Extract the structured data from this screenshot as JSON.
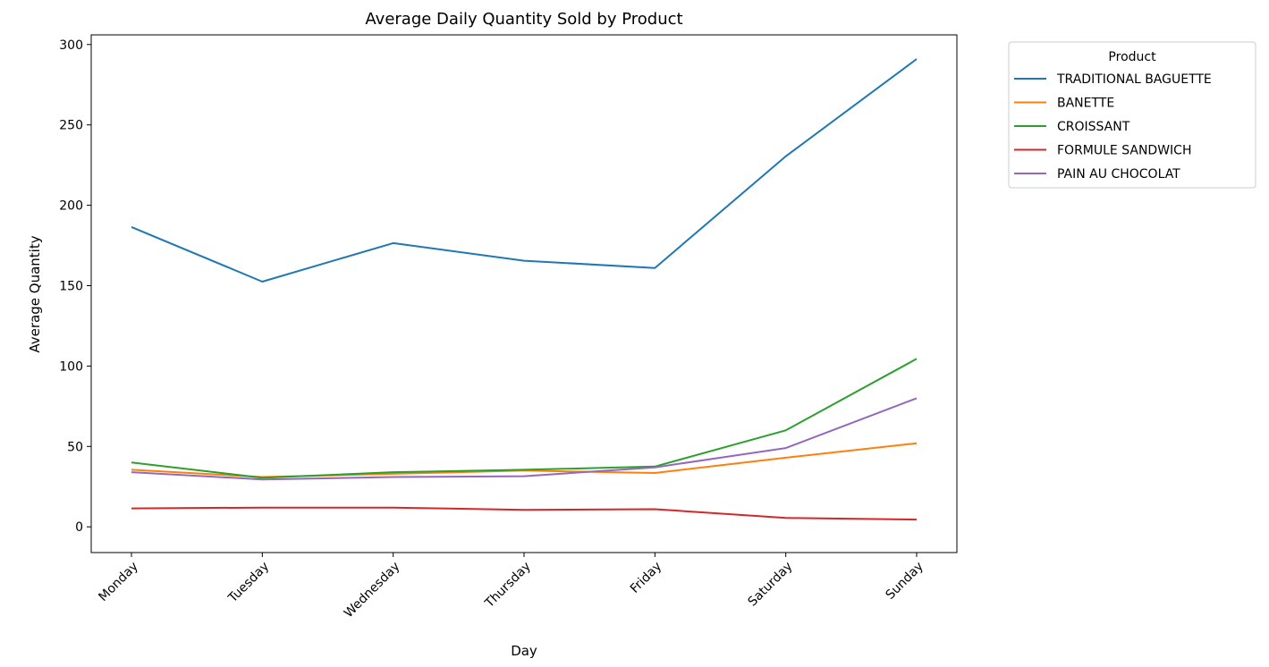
{
  "chart_data": {
    "type": "line",
    "title": "Average Daily Quantity Sold by Product",
    "xlabel": "Day",
    "ylabel": "Average Quantity",
    "categories": [
      "Monday",
      "Tuesday",
      "Wednesday",
      "Thursday",
      "Friday",
      "Saturday",
      "Sunday"
    ],
    "yticks": [
      0,
      50,
      100,
      150,
      200,
      250,
      300
    ],
    "ylim": [
      -16,
      306
    ],
    "grid": false,
    "legend": {
      "title": "Product",
      "placement": "outside-top-right"
    },
    "series": [
      {
        "name": "TRADITIONAL BAGUETTE",
        "color": "#1f77b4",
        "values": [
          186.5,
          152.5,
          176.5,
          165.5,
          161,
          230.5,
          291
        ]
      },
      {
        "name": "BANETTE",
        "color": "#ff7f0e",
        "values": [
          35.5,
          31,
          33,
          35,
          33.5,
          43,
          52
        ]
      },
      {
        "name": "CROISSANT",
        "color": "#2ca02c",
        "values": [
          40,
          30.5,
          34,
          35.5,
          37.5,
          60,
          104.5
        ]
      },
      {
        "name": "FORMULE SANDWICH",
        "color": "#d62728",
        "values": [
          11.5,
          12,
          12,
          10.5,
          11,
          5.5,
          4.5
        ]
      },
      {
        "name": "PAIN AU CHOCOLAT",
        "color": "#9467bd",
        "values": [
          34,
          29.5,
          31,
          31.5,
          37,
          49,
          80
        ]
      }
    ]
  }
}
